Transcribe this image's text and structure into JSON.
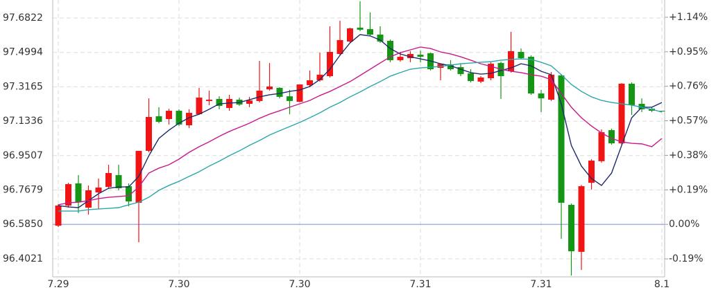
{
  "chart_data": {
    "type": "candlestick",
    "categories": [
      "7.29",
      null,
      null,
      null,
      null,
      null,
      null,
      null,
      null,
      null,
      null,
      null,
      "7.30",
      null,
      null,
      null,
      null,
      null,
      null,
      null,
      null,
      null,
      null,
      null,
      "7.30",
      null,
      null,
      null,
      null,
      null,
      null,
      null,
      null,
      null,
      null,
      null,
      "7.31",
      null,
      null,
      null,
      null,
      null,
      null,
      null,
      null,
      null,
      null,
      null,
      "7.31",
      null,
      null,
      null,
      null,
      null,
      null,
      null,
      null,
      null,
      null,
      null,
      "8.1"
    ],
    "open": [
      96.578,
      96.685,
      96.803,
      96.674,
      96.755,
      96.784,
      96.847,
      96.788,
      96.7,
      96.976,
      97.16,
      97.145,
      97.189,
      97.112,
      97.171,
      97.241,
      97.252,
      97.204,
      97.248,
      97.226,
      97.241,
      97.303,
      97.311,
      97.266,
      97.237,
      97.325,
      97.351,
      97.373,
      97.491,
      97.557,
      97.631,
      97.623,
      97.594,
      97.561,
      97.458,
      97.469,
      97.487,
      97.495,
      97.417,
      97.436,
      97.421,
      97.388,
      97.344,
      97.362,
      97.443,
      97.399,
      97.502,
      97.476,
      97.281,
      97.248,
      97.377,
      96.689,
      96.439,
      96.806,
      96.921,
      97.086,
      97.016,
      97.333,
      97.226,
      97.2,
      97.189
    ],
    "high": [
      96.692,
      96.806,
      96.847,
      96.792,
      96.829,
      96.902,
      96.902,
      96.803,
      96.976,
      97.255,
      97.208,
      97.2,
      97.197,
      97.197,
      97.311,
      97.296,
      97.266,
      97.274,
      97.259,
      97.263,
      97.454,
      97.443,
      97.314,
      97.3,
      97.329,
      97.403,
      97.498,
      97.638,
      97.668,
      97.631,
      97.771,
      97.712,
      97.638,
      97.568,
      97.502,
      97.506,
      97.509,
      97.498,
      97.439,
      97.458,
      97.436,
      97.41,
      97.373,
      97.447,
      97.45,
      97.609,
      97.52,
      97.484,
      97.3,
      97.395,
      97.384,
      96.696,
      96.795,
      96.932,
      97.09,
      97.094,
      97.336,
      97.34,
      97.255,
      97.208,
      97.189
    ],
    "low": [
      96.571,
      96.674,
      96.645,
      96.637,
      96.667,
      96.777,
      96.766,
      96.681,
      96.49,
      96.968,
      97.123,
      97.116,
      97.108,
      97.097,
      97.167,
      97.219,
      97.197,
      97.189,
      97.215,
      97.208,
      97.233,
      97.296,
      97.255,
      97.171,
      97.233,
      97.314,
      97.344,
      97.366,
      97.484,
      97.55,
      97.612,
      97.587,
      97.55,
      97.447,
      97.45,
      97.447,
      97.447,
      97.403,
      97.351,
      97.403,
      97.373,
      97.34,
      97.336,
      97.351,
      97.252,
      97.392,
      97.462,
      97.274,
      97.182,
      97.241,
      96.508,
      96.313,
      96.343,
      96.77,
      96.913,
      97.009,
      97.009,
      97.167,
      97.182,
      97.182,
      97.186
    ],
    "close": [
      96.685,
      96.799,
      96.703,
      96.766,
      96.781,
      96.858,
      96.777,
      96.707,
      96.976,
      97.156,
      97.13,
      97.189,
      97.116,
      97.178,
      97.259,
      97.248,
      97.215,
      97.252,
      97.222,
      97.244,
      97.296,
      97.318,
      97.263,
      97.241,
      97.329,
      97.351,
      97.381,
      97.502,
      97.565,
      97.627,
      97.62,
      97.594,
      97.557,
      97.458,
      97.476,
      97.491,
      97.476,
      97.41,
      97.439,
      97.41,
      97.384,
      97.347,
      97.366,
      97.439,
      97.373,
      97.506,
      97.469,
      97.281,
      97.255,
      97.381,
      96.7,
      96.442,
      96.788,
      96.924,
      97.075,
      97.016,
      97.333,
      97.219,
      97.197,
      97.189,
      97.186
    ],
    "up_color": "#f01414",
    "down_color": "#149614",
    "lines": [
      {
        "color": "#1e2a6c",
        "values": [
          96.685,
          96.678,
          96.674,
          96.711,
          96.748,
          96.777,
          96.784,
          96.784,
          96.84,
          96.95,
          97.042,
          97.086,
          97.123,
          97.152,
          97.171,
          97.197,
          97.226,
          97.23,
          97.233,
          97.248,
          97.263,
          97.274,
          97.281,
          97.292,
          97.3,
          97.318,
          97.355,
          97.41,
          97.484,
          97.55,
          97.594,
          97.587,
          97.565,
          97.52,
          97.491,
          97.476,
          97.465,
          97.454,
          97.439,
          97.428,
          97.41,
          97.392,
          97.384,
          97.388,
          97.403,
          97.417,
          97.439,
          97.428,
          97.399,
          97.381,
          97.226,
          97.005,
          96.895,
          96.829,
          96.792,
          96.858,
          97.005,
          97.152,
          97.208,
          97.208,
          97.233
        ]
      },
      {
        "color": "#c8198c",
        "values": [
          96.689,
          96.7,
          96.703,
          96.711,
          96.722,
          96.729,
          96.733,
          96.737,
          96.784,
          96.858,
          96.884,
          96.902,
          96.932,
          96.968,
          96.998,
          97.024,
          97.053,
          97.079,
          97.101,
          97.123,
          97.149,
          97.171,
          97.189,
          97.208,
          97.226,
          97.244,
          97.27,
          97.292,
          97.318,
          97.344,
          97.377,
          97.41,
          97.443,
          97.476,
          97.498,
          97.513,
          97.528,
          97.52,
          97.502,
          97.491,
          97.476,
          97.458,
          97.439,
          97.425,
          97.41,
          97.399,
          97.392,
          97.381,
          97.373,
          97.355,
          97.281,
          97.208,
          97.152,
          97.108,
          97.071,
          97.042,
          97.024,
          97.016,
          97.013,
          96.998,
          97.042
        ]
      },
      {
        "color": "#2aa6aa",
        "values": [
          96.656,
          96.656,
          96.656,
          96.663,
          96.667,
          96.67,
          96.674,
          96.689,
          96.703,
          96.729,
          96.766,
          96.792,
          96.814,
          96.84,
          96.865,
          96.895,
          96.921,
          96.95,
          96.976,
          97.005,
          97.031,
          97.06,
          97.083,
          97.105,
          97.127,
          97.152,
          97.178,
          97.208,
          97.233,
          97.263,
          97.289,
          97.318,
          97.344,
          97.373,
          97.392,
          97.41,
          97.417,
          97.421,
          97.425,
          97.432,
          97.439,
          97.443,
          97.447,
          97.45,
          97.458,
          97.462,
          97.465,
          97.462,
          97.447,
          97.428,
          97.381,
          97.329,
          97.292,
          97.263,
          97.244,
          97.233,
          97.226,
          97.219,
          97.208,
          97.197,
          97.182
        ]
      }
    ],
    "baseline": 96.585,
    "baseline_color": "#8f9ad8",
    "ylim": [
      96.306,
      97.778
    ],
    "yticks": [
      97.6822,
      97.4994,
      97.3165,
      97.1336,
      96.9507,
      96.7679,
      {
        "value": 96.585,
        "label": "96.5850"
      },
      96.4021
    ],
    "y2lim": [
      -0.289,
      1.235
    ],
    "y2ticks": [
      {
        "value": 1.14,
        "label": "+1.14%"
      },
      {
        "value": 0.95,
        "label": "+0.95%"
      },
      {
        "value": 0.76,
        "label": "+0.76%"
      },
      {
        "value": 0.57,
        "label": "+0.57%"
      },
      {
        "value": 0.38,
        "label": "+0.38%"
      },
      {
        "value": 0.19,
        "label": "+0.19%"
      },
      {
        "value": 0,
        "label": "0.00%"
      },
      {
        "value": -0.19,
        "label": "-0.19%"
      }
    ],
    "grid": true
  }
}
